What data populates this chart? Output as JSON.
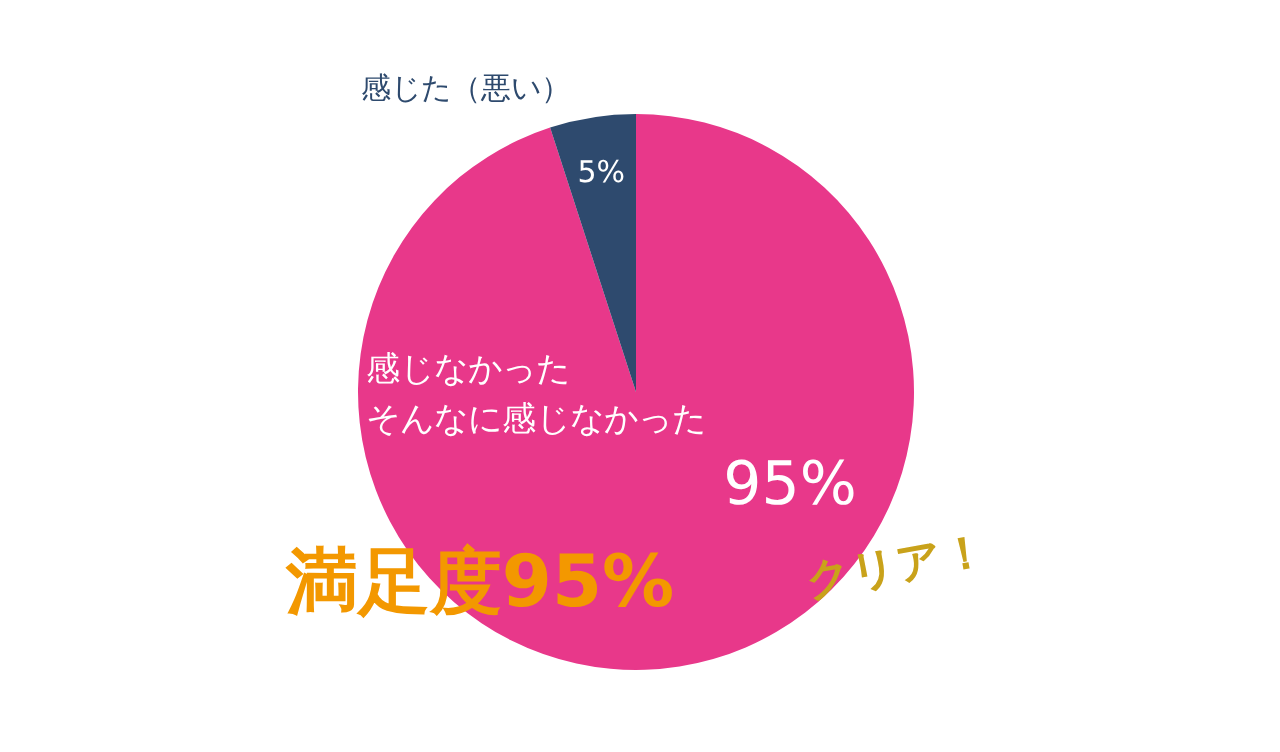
{
  "chart_data": {
    "type": "pie",
    "categories": [
      "感じなかった",
      "感じた（悪い）"
    ],
    "values": [
      95,
      5
    ],
    "value_labels": [
      "95%",
      "5%"
    ],
    "colors": [
      "#e8388a",
      "#2e4a6e"
    ],
    "annotations": [
      "そんなに感じなかった",
      "満足度95%",
      "クリア！"
    ]
  }
}
